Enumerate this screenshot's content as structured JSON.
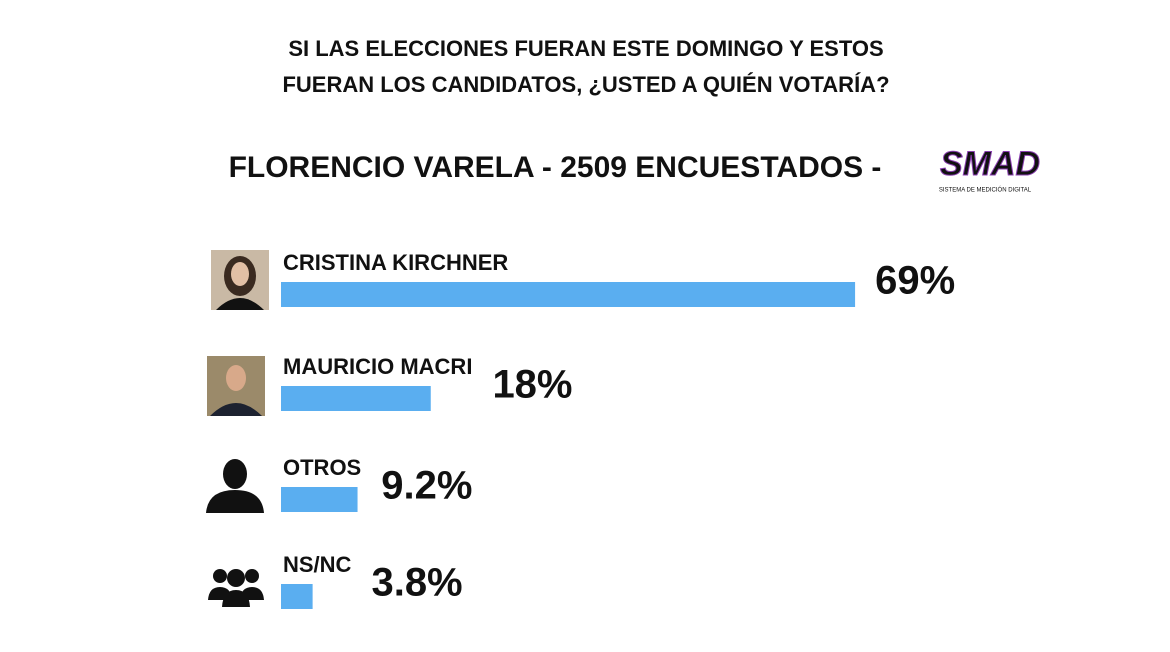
{
  "chart_data": {
    "type": "bar",
    "orientation": "horizontal",
    "title": [
      "SI LAS ELECCIONES FUERAN ESTE DOMINGO Y ESTOS",
      "FUERAN LOS CANDIDATOS, ¿USTED A QUIÉN VOTARÍA?"
    ],
    "subtitle": "FLORENCIO VARELA - 2509 ENCUESTADOS -",
    "logo": {
      "text": "SMAD",
      "caption": "SISTEMA DE MEDICIÓN DIGITAL"
    },
    "categories": [
      "CRISTINA KIRCHNER",
      "MAURICIO MACRI",
      "OTROS",
      "NS/NC"
    ],
    "values": [
      69,
      18,
      9.2,
      3.8
    ],
    "value_labels": [
      "69%",
      "18%",
      "9.2%",
      "3.8%"
    ],
    "color": "#5aaef0"
  }
}
